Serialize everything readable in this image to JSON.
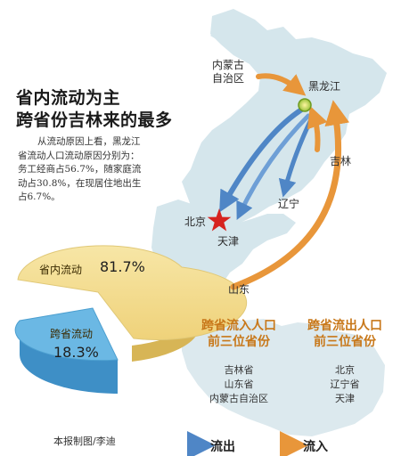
{
  "title": {
    "line1": "省内流动为主",
    "line2": "跨省份吉林来的最多"
  },
  "intro": {
    "line1": "从流动原因上看，黑龙江",
    "line2": "省流动人口流动原因分别为：",
    "line3": "务工经商占56.7%，随家庭流",
    "line4": "动占30.8%，在现居住地出生",
    "line5": "占6.7%。"
  },
  "places": {
    "neimenggu_line1": "内蒙古",
    "neimenggu_line2": "自治区",
    "heilongjiang": "黑龙江",
    "jilin": "吉林",
    "liaoning": "辽宁",
    "beijing": "北京",
    "tianjin": "天津",
    "shandong": "山东"
  },
  "pie": {
    "slices": [
      {
        "label": "省内流动",
        "value_text": "81.7%",
        "value": 81.7,
        "color": "#f3dc8e"
      },
      {
        "label": "跨省流动",
        "value_text": "18.3%",
        "value": 18.3,
        "color": "#6bb8e4"
      }
    ]
  },
  "inflow": {
    "header_line1": "跨省流入人口",
    "header_line2": "前三位省份",
    "items": [
      "吉林省",
      "山东省",
      "内蒙古自治区"
    ]
  },
  "outflow": {
    "header_line1": "跨省流出人口",
    "header_line2": "前三位省份",
    "items": [
      "北京",
      "辽宁省",
      "天津"
    ]
  },
  "footer": {
    "credit": "本报制图/李迪"
  },
  "legend": {
    "outflow_label": "流出",
    "inflow_label": "流入",
    "outflow_color": "#4f86c6",
    "inflow_color": "#e8963a"
  },
  "colors": {
    "map_fill": "#d5e6ec",
    "title_accent": "#c8781a",
    "star": "#d6231f"
  }
}
